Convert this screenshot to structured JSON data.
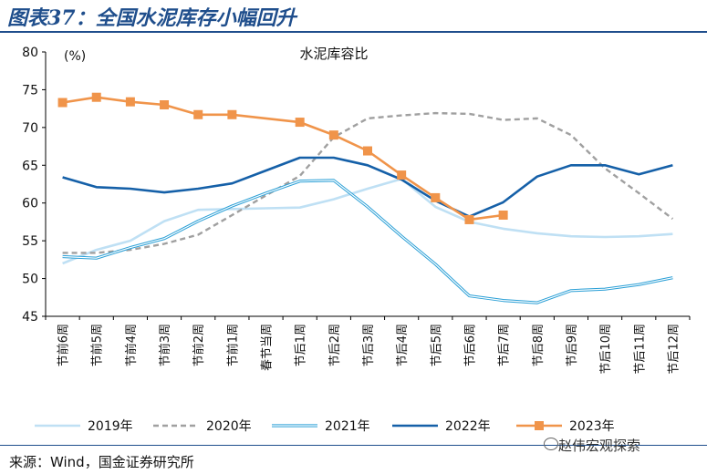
{
  "header": {
    "title": "图表37：全国水泥库存小幅回升"
  },
  "footer": {
    "source": "来源：Wind，国金证券研究所",
    "watermark": "赵伟宏观探索"
  },
  "chart_data": {
    "type": "line",
    "title": "水泥库容比",
    "ylabel": "(%)",
    "ylim": [
      45,
      80
    ],
    "yticks": [
      45,
      50,
      55,
      60,
      65,
      70,
      75,
      80
    ],
    "categories": [
      "节前6周",
      "节前5周",
      "节前4周",
      "节前3周",
      "节前2周",
      "节前1周",
      "春节当周",
      "节后1周",
      "节后2周",
      "节后3周",
      "节后4周",
      "节后5周",
      "节后6周",
      "节后7周",
      "节后8周",
      "节后9周",
      "节后10周",
      "节后11周",
      "节后12周"
    ],
    "legend_position": "bottom",
    "series": [
      {
        "name": "2019年",
        "color": "#bfe0f4",
        "style": "solid",
        "values": [
          52.0,
          53.8,
          55.0,
          57.6,
          59.1,
          59.2,
          59.3,
          59.4,
          60.5,
          61.9,
          63.2,
          59.5,
          57.5,
          56.6,
          56.0,
          55.6,
          55.5,
          55.6,
          55.9
        ]
      },
      {
        "name": "2020年",
        "color": "#a0a0a0",
        "style": "dashed",
        "values": [
          53.4,
          53.4,
          53.8,
          54.6,
          55.8,
          58.4,
          61.0,
          63.6,
          68.7,
          71.2,
          71.6,
          71.9,
          71.8,
          71.0,
          71.2,
          69.0,
          64.6,
          61.3,
          57.9
        ]
      },
      {
        "name": "2021年",
        "color": "#2a9fd6",
        "style": "double",
        "values": [
          52.9,
          52.7,
          54.1,
          55.3,
          57.6,
          59.6,
          61.3,
          62.9,
          63.0,
          59.5,
          55.6,
          51.9,
          47.7,
          47.1,
          46.8,
          48.4,
          48.6,
          49.2,
          50.1
        ]
      },
      {
        "name": "2022年",
        "color": "#1560a8",
        "style": "solid",
        "values": [
          63.4,
          62.1,
          61.9,
          61.4,
          61.9,
          62.6,
          64.3,
          66.0,
          66.0,
          65.0,
          63.1,
          60.3,
          58.2,
          60.1,
          63.5,
          65.0,
          65.0,
          63.8,
          65.0
        ]
      },
      {
        "name": "2023年",
        "color": "#f0944a",
        "style": "marker",
        "values": [
          73.3,
          74.0,
          73.4,
          73.0,
          71.7,
          71.7,
          null,
          70.7,
          69.0,
          66.9,
          63.7,
          60.7,
          57.8,
          58.4,
          null,
          null,
          null,
          null,
          null
        ]
      }
    ]
  }
}
